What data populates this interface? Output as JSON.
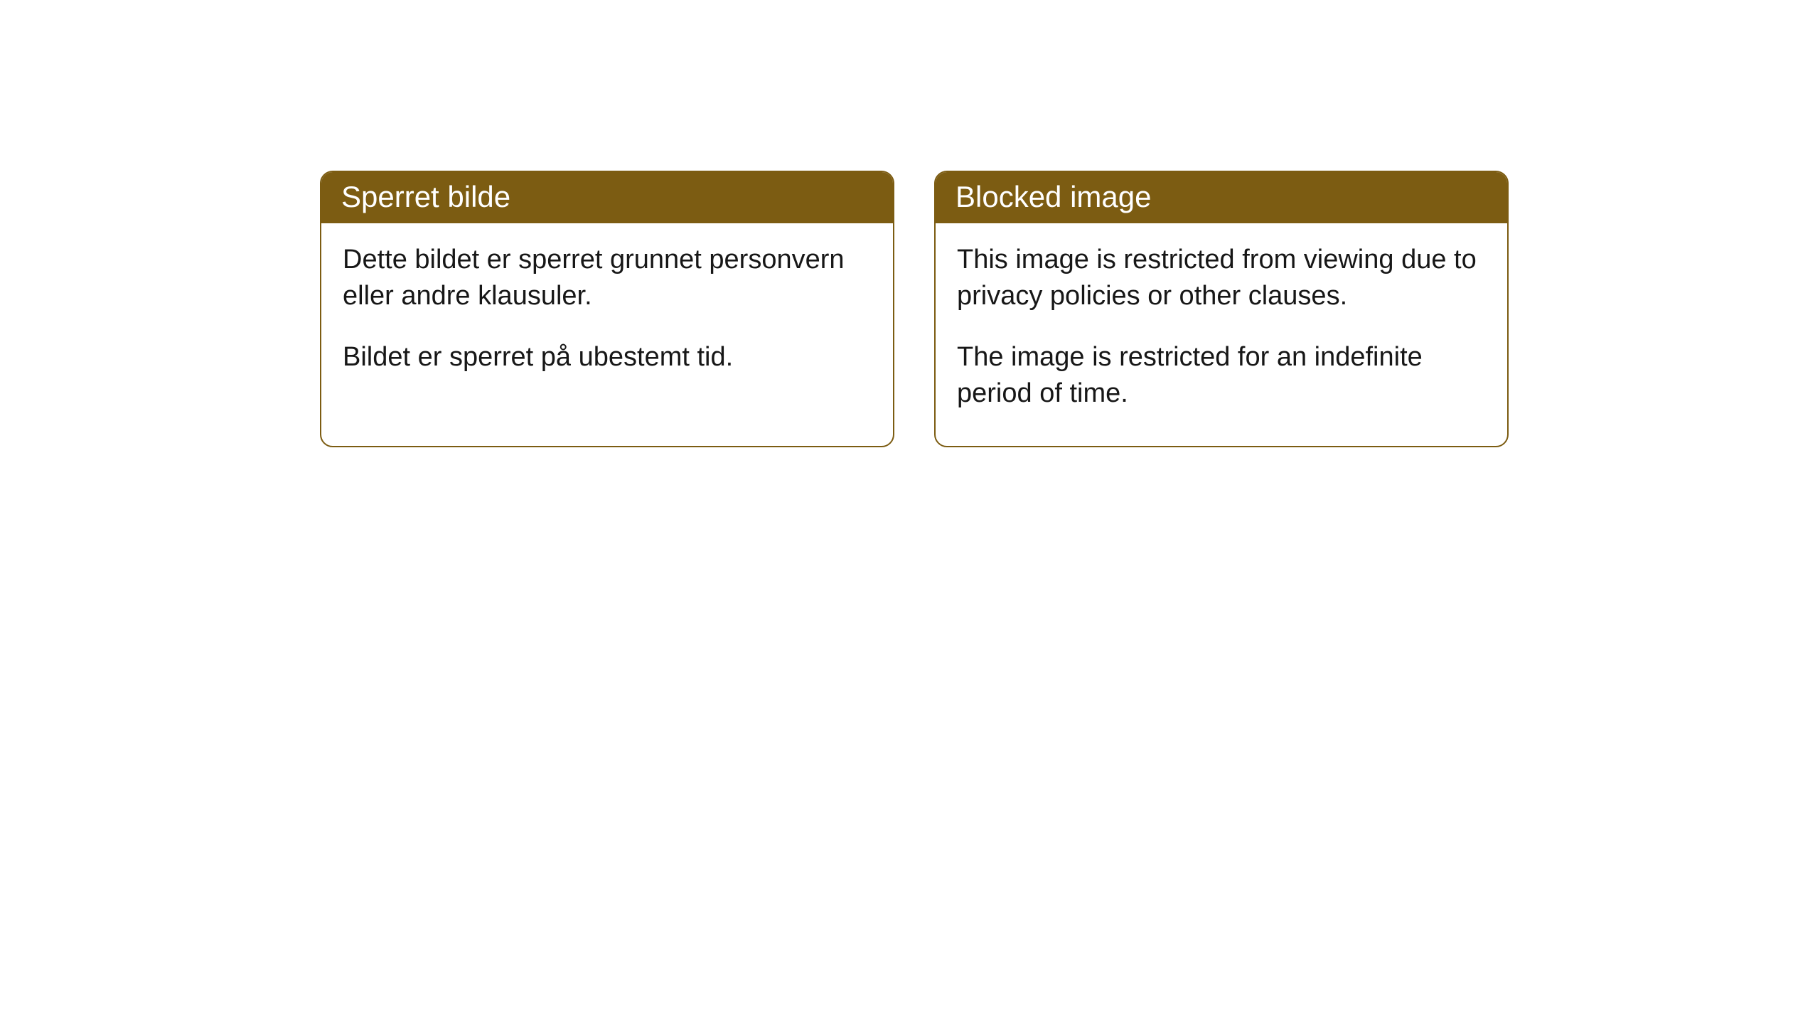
{
  "layout": {
    "background_color": "#ffffff",
    "card_border_color": "#7c5c12",
    "card_header_bg": "#7c5c12",
    "card_header_fg": "#ffffff",
    "card_body_fg": "#171717",
    "card_border_radius": 18,
    "header_fontsize": 42,
    "body_fontsize": 38
  },
  "cards": [
    {
      "title": "Sperret bilde",
      "paragraphs": [
        "Dette bildet er sperret grunnet personvern eller andre klausuler.",
        "Bildet er sperret på ubestemt tid."
      ]
    },
    {
      "title": "Blocked image",
      "paragraphs": [
        "This image is restricted from viewing due to privacy policies or other clauses.",
        "The image is restricted for an indefinite period of time."
      ]
    }
  ]
}
